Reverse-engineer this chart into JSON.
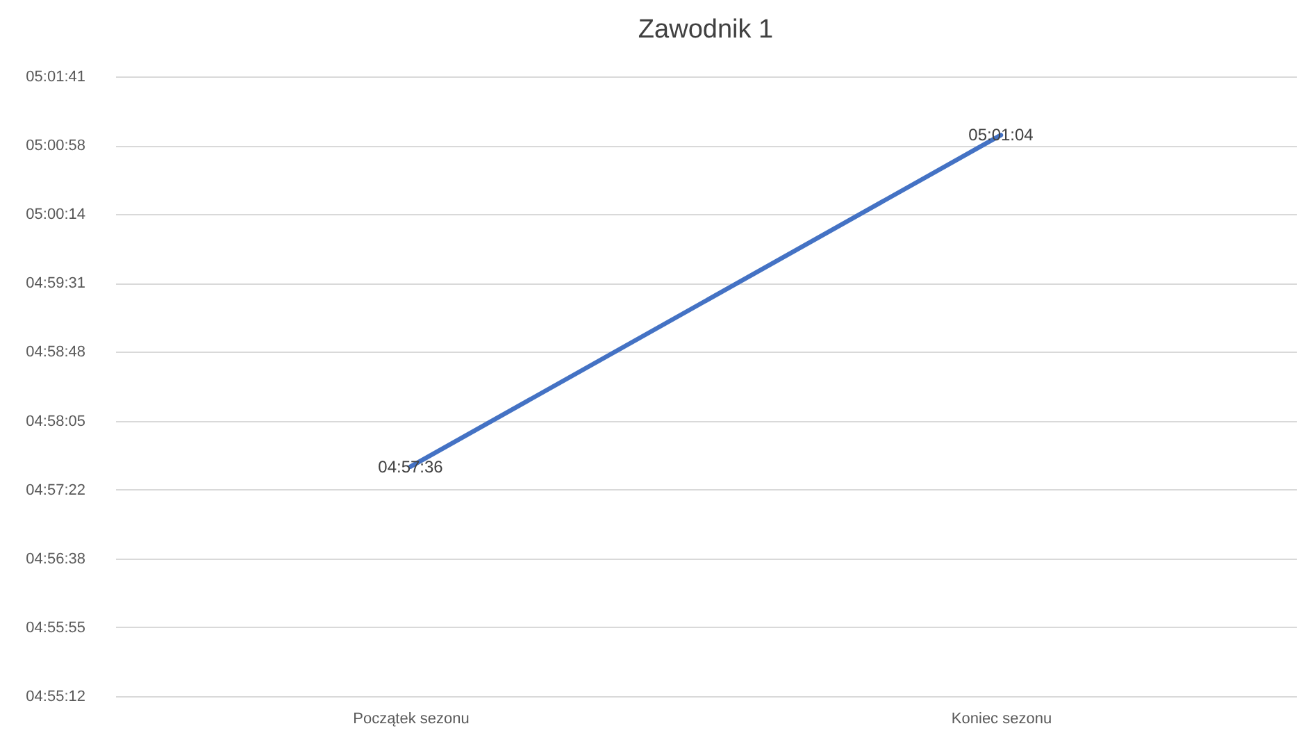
{
  "chart_data": {
    "type": "line",
    "title": "Zawodnik 1",
    "categories": [
      "Początek sezonu",
      "Koniec sezonu"
    ],
    "series": [
      {
        "color": "#4472c4",
        "values": [
          4.96,
          5.01778
        ],
        "value_labels": [
          "04:57:36",
          "05:01:04"
        ]
      }
    ],
    "ylim": [
      4.92,
      5.028
    ],
    "yticks": [
      {
        "value": 4.92,
        "label": "04:55:12"
      },
      {
        "value": 4.932,
        "label": "04:55:55"
      },
      {
        "value": 4.944,
        "label": "04:56:38"
      },
      {
        "value": 4.956,
        "label": "04:57:22"
      },
      {
        "value": 4.968,
        "label": "04:58:05"
      },
      {
        "value": 4.98,
        "label": "04:58:48"
      },
      {
        "value": 4.992,
        "label": "04:59:31"
      },
      {
        "value": 5.004,
        "label": "05:00:14"
      },
      {
        "value": 5.016,
        "label": "05:00:58"
      },
      {
        "value": 5.028,
        "label": "05:01:41"
      }
    ],
    "grid": "y",
    "legend": false,
    "marker": "none",
    "line_style": "solid"
  }
}
